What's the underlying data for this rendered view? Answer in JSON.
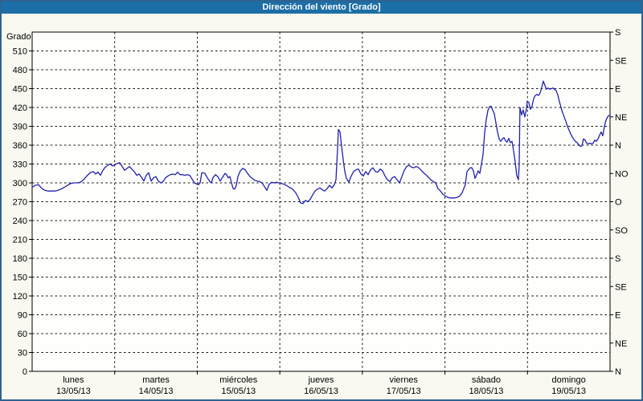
{
  "window": {
    "title": "Dirección del viento [Grado]"
  },
  "colors": {
    "titlebar": "#1c6ea6",
    "frame_border": "#2e6292",
    "background": "#f9f9f1",
    "plot_background": "#fefefc",
    "line": "#2121b0",
    "grid": "#111111",
    "axis": "#000000",
    "title_text": "#ffffff"
  },
  "chart_data": {
    "type": "line",
    "title": "Dirección del viento [Grado]",
    "ylabel": "Grado",
    "unit": "Grado",
    "grid": true,
    "legend": false,
    "y_axis_left": {
      "min": 0,
      "max": 540,
      "tick_step": 30,
      "first_label": 0,
      "last_label": 510
    },
    "y_axis_right": {
      "description": "compass direction ticks every 45 degrees",
      "ticks": [
        {
          "value": 540,
          "label": "S"
        },
        {
          "value": 495,
          "label": "SE"
        },
        {
          "value": 450,
          "label": "E"
        },
        {
          "value": 405,
          "label": "NE"
        },
        {
          "value": 360,
          "label": "N"
        },
        {
          "value": 315,
          "label": "NO"
        },
        {
          "value": 270,
          "label": "O"
        },
        {
          "value": 225,
          "label": "SO"
        },
        {
          "value": 180,
          "label": "S"
        },
        {
          "value": 135,
          "label": "SE"
        },
        {
          "value": 90,
          "label": "E"
        },
        {
          "value": 45,
          "label": "NE"
        },
        {
          "value": 0,
          "label": "N"
        }
      ]
    },
    "x_axis": {
      "range_days": [
        0,
        7
      ],
      "days": [
        {
          "name": "lunes",
          "date": "13/05/13"
        },
        {
          "name": "martes",
          "date": "14/05/13"
        },
        {
          "name": "miércoles",
          "date": "15/05/13"
        },
        {
          "name": "jueves",
          "date": "16/05/13"
        },
        {
          "name": "viernes",
          "date": "17/05/13"
        },
        {
          "name": "sábado",
          "date": "18/05/13"
        },
        {
          "name": "domingo",
          "date": "19/05/13"
        }
      ]
    },
    "series": [
      {
        "name": "Dirección del viento",
        "unit": "Grado",
        "points": [
          [
            0,
            293
          ],
          [
            0.039,
            296
          ],
          [
            0.078,
            297
          ],
          [
            0.117,
            291
          ],
          [
            0.156,
            288
          ],
          [
            0.195,
            287
          ],
          [
            0.234,
            287
          ],
          [
            0.273,
            287
          ],
          [
            0.311,
            288
          ],
          [
            0.35,
            290
          ],
          [
            0.389,
            293
          ],
          [
            0.428,
            296
          ],
          [
            0.467,
            299
          ],
          [
            0.506,
            300
          ],
          [
            0.545,
            300
          ],
          [
            0.584,
            301
          ],
          [
            0.623,
            305
          ],
          [
            0.662,
            311
          ],
          [
            0.701,
            316
          ],
          [
            0.74,
            318
          ],
          [
            0.769,
            314
          ],
          [
            0.798,
            317
          ],
          [
            0.828,
            312
          ],
          [
            0.857,
            320
          ],
          [
            0.886,
            325
          ],
          [
            0.915,
            328
          ],
          [
            0.944,
            330
          ],
          [
            0.974,
            327
          ],
          [
            1.003,
            329
          ],
          [
            1.032,
            331
          ],
          [
            1.061,
            332
          ],
          [
            1.09,
            326
          ],
          [
            1.12,
            320
          ],
          [
            1.149,
            323
          ],
          [
            1.178,
            326
          ],
          [
            1.207,
            322
          ],
          [
            1.236,
            318
          ],
          [
            1.266,
            312
          ],
          [
            1.295,
            314
          ],
          [
            1.324,
            309
          ],
          [
            1.353,
            303
          ],
          [
            1.382,
            312
          ],
          [
            1.412,
            316
          ],
          [
            1.441,
            303
          ],
          [
            1.47,
            308
          ],
          [
            1.499,
            310
          ],
          [
            1.528,
            303
          ],
          [
            1.558,
            300
          ],
          [
            1.587,
            302
          ],
          [
            1.616,
            308
          ],
          [
            1.645,
            311
          ],
          [
            1.674,
            313
          ],
          [
            1.704,
            314
          ],
          [
            1.733,
            313
          ],
          [
            1.762,
            317
          ],
          [
            1.791,
            313
          ],
          [
            1.82,
            313
          ],
          [
            1.85,
            312
          ],
          [
            1.879,
            313
          ],
          [
            1.908,
            312
          ],
          [
            1.937,
            306
          ],
          [
            1.966,
            300
          ],
          [
            1.996,
            298
          ],
          [
            2.015,
            297
          ],
          [
            2.035,
            300
          ],
          [
            2.054,
            316
          ],
          [
            2.074,
            316
          ],
          [
            2.093,
            315
          ],
          [
            2.122,
            308
          ],
          [
            2.152,
            302
          ],
          [
            2.171,
            300
          ],
          [
            2.19,
            308
          ],
          [
            2.22,
            313
          ],
          [
            2.249,
            310
          ],
          [
            2.278,
            303
          ],
          [
            2.307,
            309
          ],
          [
            2.336,
            315
          ],
          [
            2.356,
            313
          ],
          [
            2.375,
            308
          ],
          [
            2.395,
            310
          ],
          [
            2.414,
            300
          ],
          [
            2.434,
            291
          ],
          [
            2.453,
            290
          ],
          [
            2.473,
            296
          ],
          [
            2.492,
            310
          ],
          [
            2.521,
            319
          ],
          [
            2.551,
            323
          ],
          [
            2.58,
            321
          ],
          [
            2.609,
            315
          ],
          [
            2.638,
            310
          ],
          [
            2.667,
            307
          ],
          [
            2.697,
            304
          ],
          [
            2.726,
            303
          ],
          [
            2.755,
            302
          ],
          [
            2.784,
            300
          ],
          [
            2.814,
            294
          ],
          [
            2.843,
            288
          ],
          [
            2.872,
            298
          ],
          [
            2.901,
            301
          ],
          [
            2.93,
            300
          ],
          [
            2.96,
            301
          ],
          [
            2.989,
            300
          ],
          [
            3.018,
            299
          ],
          [
            3.047,
            298
          ],
          [
            3.077,
            296
          ],
          [
            3.115,
            293
          ],
          [
            3.154,
            290
          ],
          [
            3.193,
            284
          ],
          [
            3.223,
            277
          ],
          [
            3.252,
            268
          ],
          [
            3.281,
            267
          ],
          [
            3.31,
            272
          ],
          [
            3.339,
            270
          ],
          [
            3.369,
            274
          ],
          [
            3.398,
            281
          ],
          [
            3.427,
            287
          ],
          [
            3.456,
            290
          ],
          [
            3.485,
            292
          ],
          [
            3.515,
            289
          ],
          [
            3.544,
            287
          ],
          [
            3.573,
            291
          ],
          [
            3.602,
            296
          ],
          [
            3.631,
            292
          ],
          [
            3.661,
            297
          ],
          [
            3.68,
            305
          ],
          [
            3.7,
            355
          ],
          [
            3.709,
            385
          ],
          [
            3.729,
            381
          ],
          [
            3.748,
            358
          ],
          [
            3.768,
            337
          ],
          [
            3.787,
            318
          ],
          [
            3.807,
            307
          ],
          [
            3.836,
            301
          ],
          [
            3.865,
            311
          ],
          [
            3.894,
            318
          ],
          [
            3.924,
            321
          ],
          [
            3.953,
            322
          ],
          [
            3.982,
            314
          ],
          [
            4.011,
            311
          ],
          [
            4.04,
            318
          ],
          [
            4.07,
            313
          ],
          [
            4.099,
            321
          ],
          [
            4.128,
            324
          ],
          [
            4.157,
            318
          ],
          [
            4.186,
            317
          ],
          [
            4.216,
            322
          ],
          [
            4.245,
            319
          ],
          [
            4.274,
            311
          ],
          [
            4.303,
            305
          ],
          [
            4.332,
            302
          ],
          [
            4.362,
            308
          ],
          [
            4.391,
            310
          ],
          [
            4.42,
            305
          ],
          [
            4.449,
            300
          ],
          [
            4.478,
            310
          ],
          [
            4.508,
            320
          ],
          [
            4.537,
            326
          ],
          [
            4.566,
            328
          ],
          [
            4.595,
            325
          ],
          [
            4.624,
            324
          ],
          [
            4.654,
            326
          ],
          [
            4.683,
            324
          ],
          [
            4.712,
            320
          ],
          [
            4.741,
            316
          ],
          [
            4.77,
            313
          ],
          [
            4.8,
            309
          ],
          [
            4.829,
            305
          ],
          [
            4.858,
            302
          ],
          [
            4.887,
            300
          ],
          [
            4.916,
            291
          ],
          [
            4.946,
            287
          ],
          [
            4.975,
            282
          ],
          [
            5.004,
            279
          ],
          [
            5.033,
            277
          ],
          [
            5.062,
            276
          ],
          [
            5.092,
            276
          ],
          [
            5.121,
            276
          ],
          [
            5.15,
            277
          ],
          [
            5.179,
            279
          ],
          [
            5.208,
            284
          ],
          [
            5.228,
            291
          ],
          [
            5.247,
            297
          ],
          [
            5.267,
            318
          ],
          [
            5.286,
            321
          ],
          [
            5.306,
            324
          ],
          [
            5.325,
            324
          ],
          [
            5.345,
            319
          ],
          [
            5.364,
            307
          ],
          [
            5.384,
            313
          ],
          [
            5.403,
            319
          ],
          [
            5.423,
            315
          ],
          [
            5.442,
            330
          ],
          [
            5.462,
            345
          ],
          [
            5.481,
            380
          ],
          [
            5.5,
            400
          ],
          [
            5.52,
            415
          ],
          [
            5.539,
            421
          ],
          [
            5.559,
            422
          ],
          [
            5.578,
            416
          ],
          [
            5.598,
            410
          ],
          [
            5.617,
            396
          ],
          [
            5.637,
            381
          ],
          [
            5.656,
            370
          ],
          [
            5.676,
            366
          ],
          [
            5.695,
            370
          ],
          [
            5.715,
            372
          ],
          [
            5.734,
            367
          ],
          [
            5.754,
            365
          ],
          [
            5.773,
            371
          ],
          [
            5.792,
            364
          ],
          [
            5.812,
            366
          ],
          [
            5.831,
            352
          ],
          [
            5.851,
            333
          ],
          [
            5.87,
            312
          ],
          [
            5.89,
            305
          ],
          [
            5.9,
            330
          ],
          [
            5.909,
            420
          ],
          [
            5.929,
            408
          ],
          [
            5.948,
            416
          ],
          [
            5.968,
            405
          ],
          [
            5.987,
            418
          ],
          [
            5.997,
            430
          ],
          [
            6.016,
            428
          ],
          [
            6.036,
            417
          ],
          [
            6.055,
            422
          ],
          [
            6.075,
            434
          ],
          [
            6.094,
            439
          ],
          [
            6.114,
            441
          ],
          [
            6.133,
            439
          ],
          [
            6.153,
            443
          ],
          [
            6.172,
            452
          ],
          [
            6.192,
            462
          ],
          [
            6.211,
            455
          ],
          [
            6.231,
            449
          ],
          [
            6.25,
            451
          ],
          [
            6.27,
            449
          ],
          [
            6.289,
            450
          ],
          [
            6.308,
            451
          ],
          [
            6.328,
            449
          ],
          [
            6.347,
            447
          ],
          [
            6.367,
            440
          ],
          [
            6.386,
            430
          ],
          [
            6.406,
            420
          ],
          [
            6.425,
            412
          ],
          [
            6.445,
            405
          ],
          [
            6.464,
            398
          ],
          [
            6.484,
            390
          ],
          [
            6.503,
            384
          ],
          [
            6.523,
            378
          ],
          [
            6.542,
            373
          ],
          [
            6.562,
            369
          ],
          [
            6.581,
            366
          ],
          [
            6.601,
            364
          ],
          [
            6.62,
            361
          ],
          [
            6.64,
            358
          ],
          [
            6.659,
            359
          ],
          [
            6.679,
            370
          ],
          [
            6.698,
            368
          ],
          [
            6.717,
            363
          ],
          [
            6.737,
            362
          ],
          [
            6.756,
            363
          ],
          [
            6.776,
            362
          ],
          [
            6.795,
            363
          ],
          [
            6.815,
            368
          ],
          [
            6.834,
            366
          ],
          [
            6.854,
            370
          ],
          [
            6.873,
            376
          ],
          [
            6.893,
            381
          ],
          [
            6.912,
            375
          ],
          [
            6.932,
            390
          ],
          [
            6.951,
            400
          ],
          [
            6.971,
            405
          ],
          [
            6.99,
            408
          ]
        ]
      }
    ]
  }
}
